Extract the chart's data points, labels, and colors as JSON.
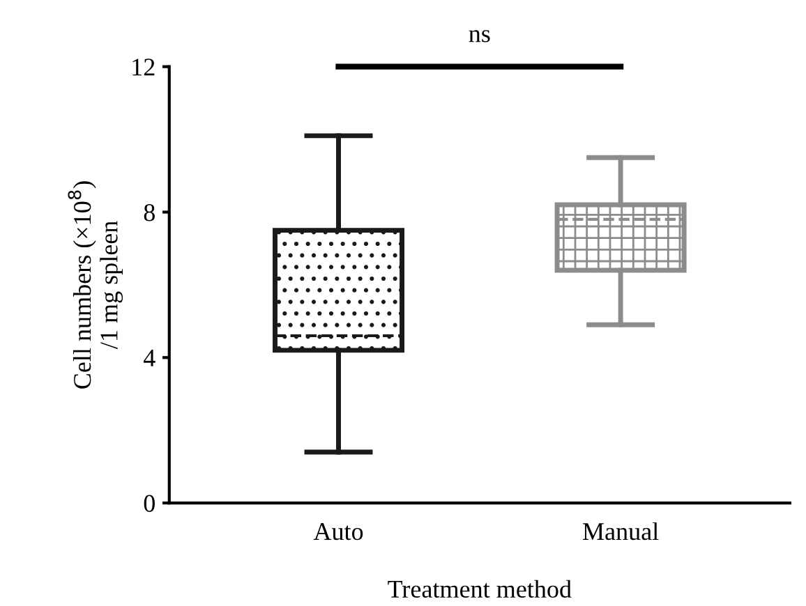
{
  "chart_data": {
    "type": "box",
    "categories": [
      "Auto",
      "Manual"
    ],
    "boxes": [
      {
        "low": 1.4,
        "q1": 4.2,
        "median": 4.6,
        "q3": 7.5,
        "high": 10.1
      },
      {
        "low": 4.9,
        "q1": 6.4,
        "median": 7.8,
        "q3": 8.2,
        "high": 9.5
      }
    ],
    "colors": [
      "#1a1a1a",
      "#8c8c8c"
    ],
    "xlabel": "Treatment method",
    "ylabel": "Cell numbers (×10$^{8}$)\n/1 mg spleen",
    "ylim": [
      0,
      12
    ],
    "yticks": [
      0,
      4,
      8,
      12
    ],
    "grid": false,
    "annotations": [
      "ns"
    ]
  }
}
